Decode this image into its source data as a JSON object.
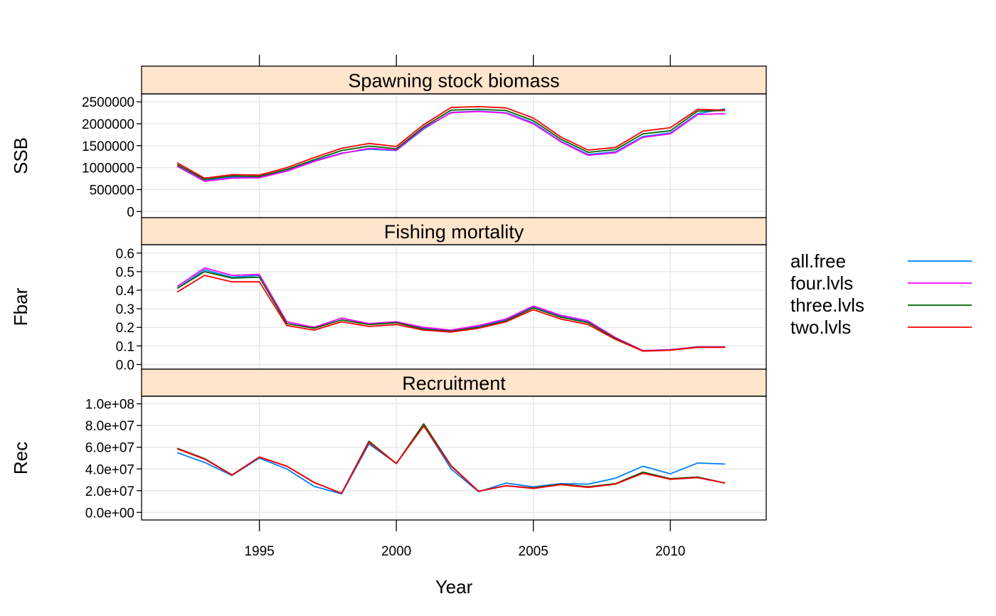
{
  "colors": {
    "strip_bg": "#ffe5cc",
    "grid": "#e6e6e6",
    "series": [
      "#0080ff",
      "#ff00ff",
      "#006400",
      "#ff0000"
    ]
  },
  "chart_data": {
    "type": "line",
    "xlabel": "Year",
    "xlim": [
      1990.7,
      2013.5
    ],
    "x_ticks": [
      "1995",
      "2000",
      "2005",
      "2010"
    ],
    "x": [
      1992,
      1993,
      1994,
      1995,
      1996,
      1997,
      1998,
      1999,
      2000,
      2001,
      2002,
      2003,
      2004,
      2005,
      2006,
      2007,
      2008,
      2009,
      2010,
      2011,
      2012
    ],
    "legend": {
      "placement": "right",
      "entries": [
        "all.free",
        "four.lvls",
        "three.lvls",
        "two.lvls"
      ]
    },
    "panels": [
      {
        "strip": "Spawning stock biomass",
        "ylabel": "SSB",
        "ylim": [
          -140000,
          2680000
        ],
        "y_ticks": [
          "0",
          "500000",
          "1000000",
          "1500000",
          "2000000",
          "2500000"
        ],
        "series": [
          {
            "name": "all.free",
            "values": [
              1040000,
              700000,
              780000,
              780000,
              930000,
              1150000,
              1330000,
              1420000,
              1390000,
              1880000,
              2260000,
              2290000,
              2250000,
              2020000,
              1600000,
              1300000,
              1360000,
              1710000,
              1790000,
              2230000,
              2340000
            ]
          },
          {
            "name": "four.lvls",
            "values": [
              1030000,
              690000,
              760000,
              770000,
              920000,
              1140000,
              1320000,
              1440000,
              1400000,
              1900000,
              2250000,
              2280000,
              2240000,
              2000000,
              1590000,
              1280000,
              1340000,
              1690000,
              1770000,
              2210000,
              2230000
            ]
          },
          {
            "name": "three.lvls",
            "values": [
              1070000,
              730000,
              810000,
              800000,
              960000,
              1180000,
              1390000,
              1490000,
              1430000,
              1930000,
              2310000,
              2330000,
              2300000,
              2070000,
              1650000,
              1350000,
              1410000,
              1770000,
              1840000,
              2290000,
              2300000
            ]
          },
          {
            "name": "two.lvls",
            "values": [
              1110000,
              760000,
              840000,
              830000,
              1000000,
              1230000,
              1440000,
              1550000,
              1480000,
              1980000,
              2370000,
              2390000,
              2360000,
              2130000,
              1700000,
              1400000,
              1460000,
              1830000,
              1910000,
              2330000,
              2310000
            ]
          }
        ]
      },
      {
        "strip": "Fishing mortality",
        "ylabel": "Fbar",
        "ylim": [
          -0.025,
          0.645
        ],
        "y_ticks": [
          "0.0",
          "0.1",
          "0.2",
          "0.3",
          "0.4",
          "0.5",
          "0.6"
        ],
        "series": [
          {
            "name": "all.free",
            "values": [
              0.41,
              0.51,
              0.47,
              0.48,
              0.23,
              0.2,
              0.25,
              0.22,
              0.23,
              0.195,
              0.18,
              0.205,
              0.24,
              0.31,
              0.26,
              0.23,
              0.14,
              0.075,
              0.08,
              0.095,
              0.095
            ]
          },
          {
            "name": "four.lvls",
            "values": [
              0.42,
              0.52,
              0.48,
              0.485,
              0.23,
              0.2,
              0.25,
              0.22,
              0.23,
              0.2,
              0.185,
              0.21,
              0.245,
              0.315,
              0.265,
              0.235,
              0.145,
              0.075,
              0.08,
              0.095,
              0.095
            ]
          },
          {
            "name": "three.lvls",
            "values": [
              0.41,
              0.5,
              0.465,
              0.47,
              0.22,
              0.195,
              0.24,
              0.215,
              0.225,
              0.19,
              0.18,
              0.2,
              0.235,
              0.305,
              0.255,
              0.225,
              0.14,
              0.073,
              0.078,
              0.093,
              0.093
            ]
          },
          {
            "name": "two.lvls",
            "values": [
              0.39,
              0.48,
              0.445,
              0.445,
              0.21,
              0.185,
              0.23,
              0.205,
              0.215,
              0.185,
              0.175,
              0.195,
              0.23,
              0.295,
              0.245,
              0.215,
              0.135,
              0.072,
              0.077,
              0.092,
              0.092
            ]
          }
        ]
      },
      {
        "strip": "Recruitment",
        "ylabel": "Rec",
        "ylim": [
          -7000000,
          107000000
        ],
        "y_ticks": [
          "0.0e+00",
          "2.0e+07",
          "4.0e+07",
          "6.0e+07",
          "8.0e+07",
          "1.0e+08"
        ],
        "series": [
          {
            "name": "all.free",
            "values": [
              55000000,
              46000000,
              34000000,
              50000000,
              40000000,
              24000000,
              17000000,
              63000000,
              45000000,
              80000000,
              40000000,
              19000000,
              27000000,
              23500000,
              26500000,
              26000000,
              31500000,
              42500000,
              35500000,
              45500000,
              44500000
            ]
          },
          {
            "name": "four.lvls",
            "values": [
              59000000,
              49500000,
              34500000,
              51000000,
              42500000,
              27500000,
              17500000,
              65500000,
              45000000,
              81500000,
              43000000,
              19500000,
              24500000,
              22500000,
              26000000,
              23500000,
              26500000,
              37000000,
              31000000,
              32500000,
              27000000
            ]
          },
          {
            "name": "three.lvls",
            "values": [
              59000000,
              49500000,
              34500000,
              51000000,
              42500000,
              27500000,
              17500000,
              65500000,
              45000000,
              81500000,
              43000000,
              19500000,
              24500000,
              22500000,
              26000000,
              23500000,
              26500000,
              37000000,
              31000000,
              32500000,
              27000000
            ]
          },
          {
            "name": "two.lvls",
            "values": [
              58500000,
              49000000,
              34500000,
              51000000,
              42500000,
              27500000,
              17500000,
              64500000,
              45000000,
              79500000,
              42500000,
              19500000,
              24500000,
              22000000,
              25500000,
              23000000,
              26000000,
              36000000,
              30500000,
              32000000,
              27000000
            ]
          }
        ]
      }
    ]
  }
}
